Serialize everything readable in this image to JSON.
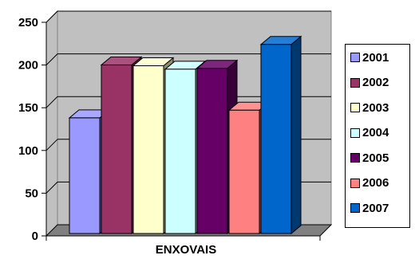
{
  "chart_data": {
    "type": "bar",
    "style": "3d-clustered",
    "title": "",
    "xlabel": "",
    "ylabel": "",
    "categories": [
      "ENXOVAIS"
    ],
    "ylim": [
      0,
      250
    ],
    "yticks": [
      0,
      50,
      100,
      150,
      200,
      250
    ],
    "grid": true,
    "legend_position": "right",
    "series": [
      {
        "name": "2001",
        "values": [
          140
        ],
        "color": "#9999ff"
      },
      {
        "name": "2002",
        "values": [
          202
        ],
        "color": "#993366"
      },
      {
        "name": "2003",
        "values": [
          201
        ],
        "color": "#ffffcc"
      },
      {
        "name": "2004",
        "values": [
          197
        ],
        "color": "#ccffff"
      },
      {
        "name": "2005",
        "values": [
          198
        ],
        "color": "#660066"
      },
      {
        "name": "2006",
        "values": [
          149
        ],
        "color": "#ff8080"
      },
      {
        "name": "2007",
        "values": [
          226
        ],
        "color": "#0066cc"
      }
    ]
  }
}
